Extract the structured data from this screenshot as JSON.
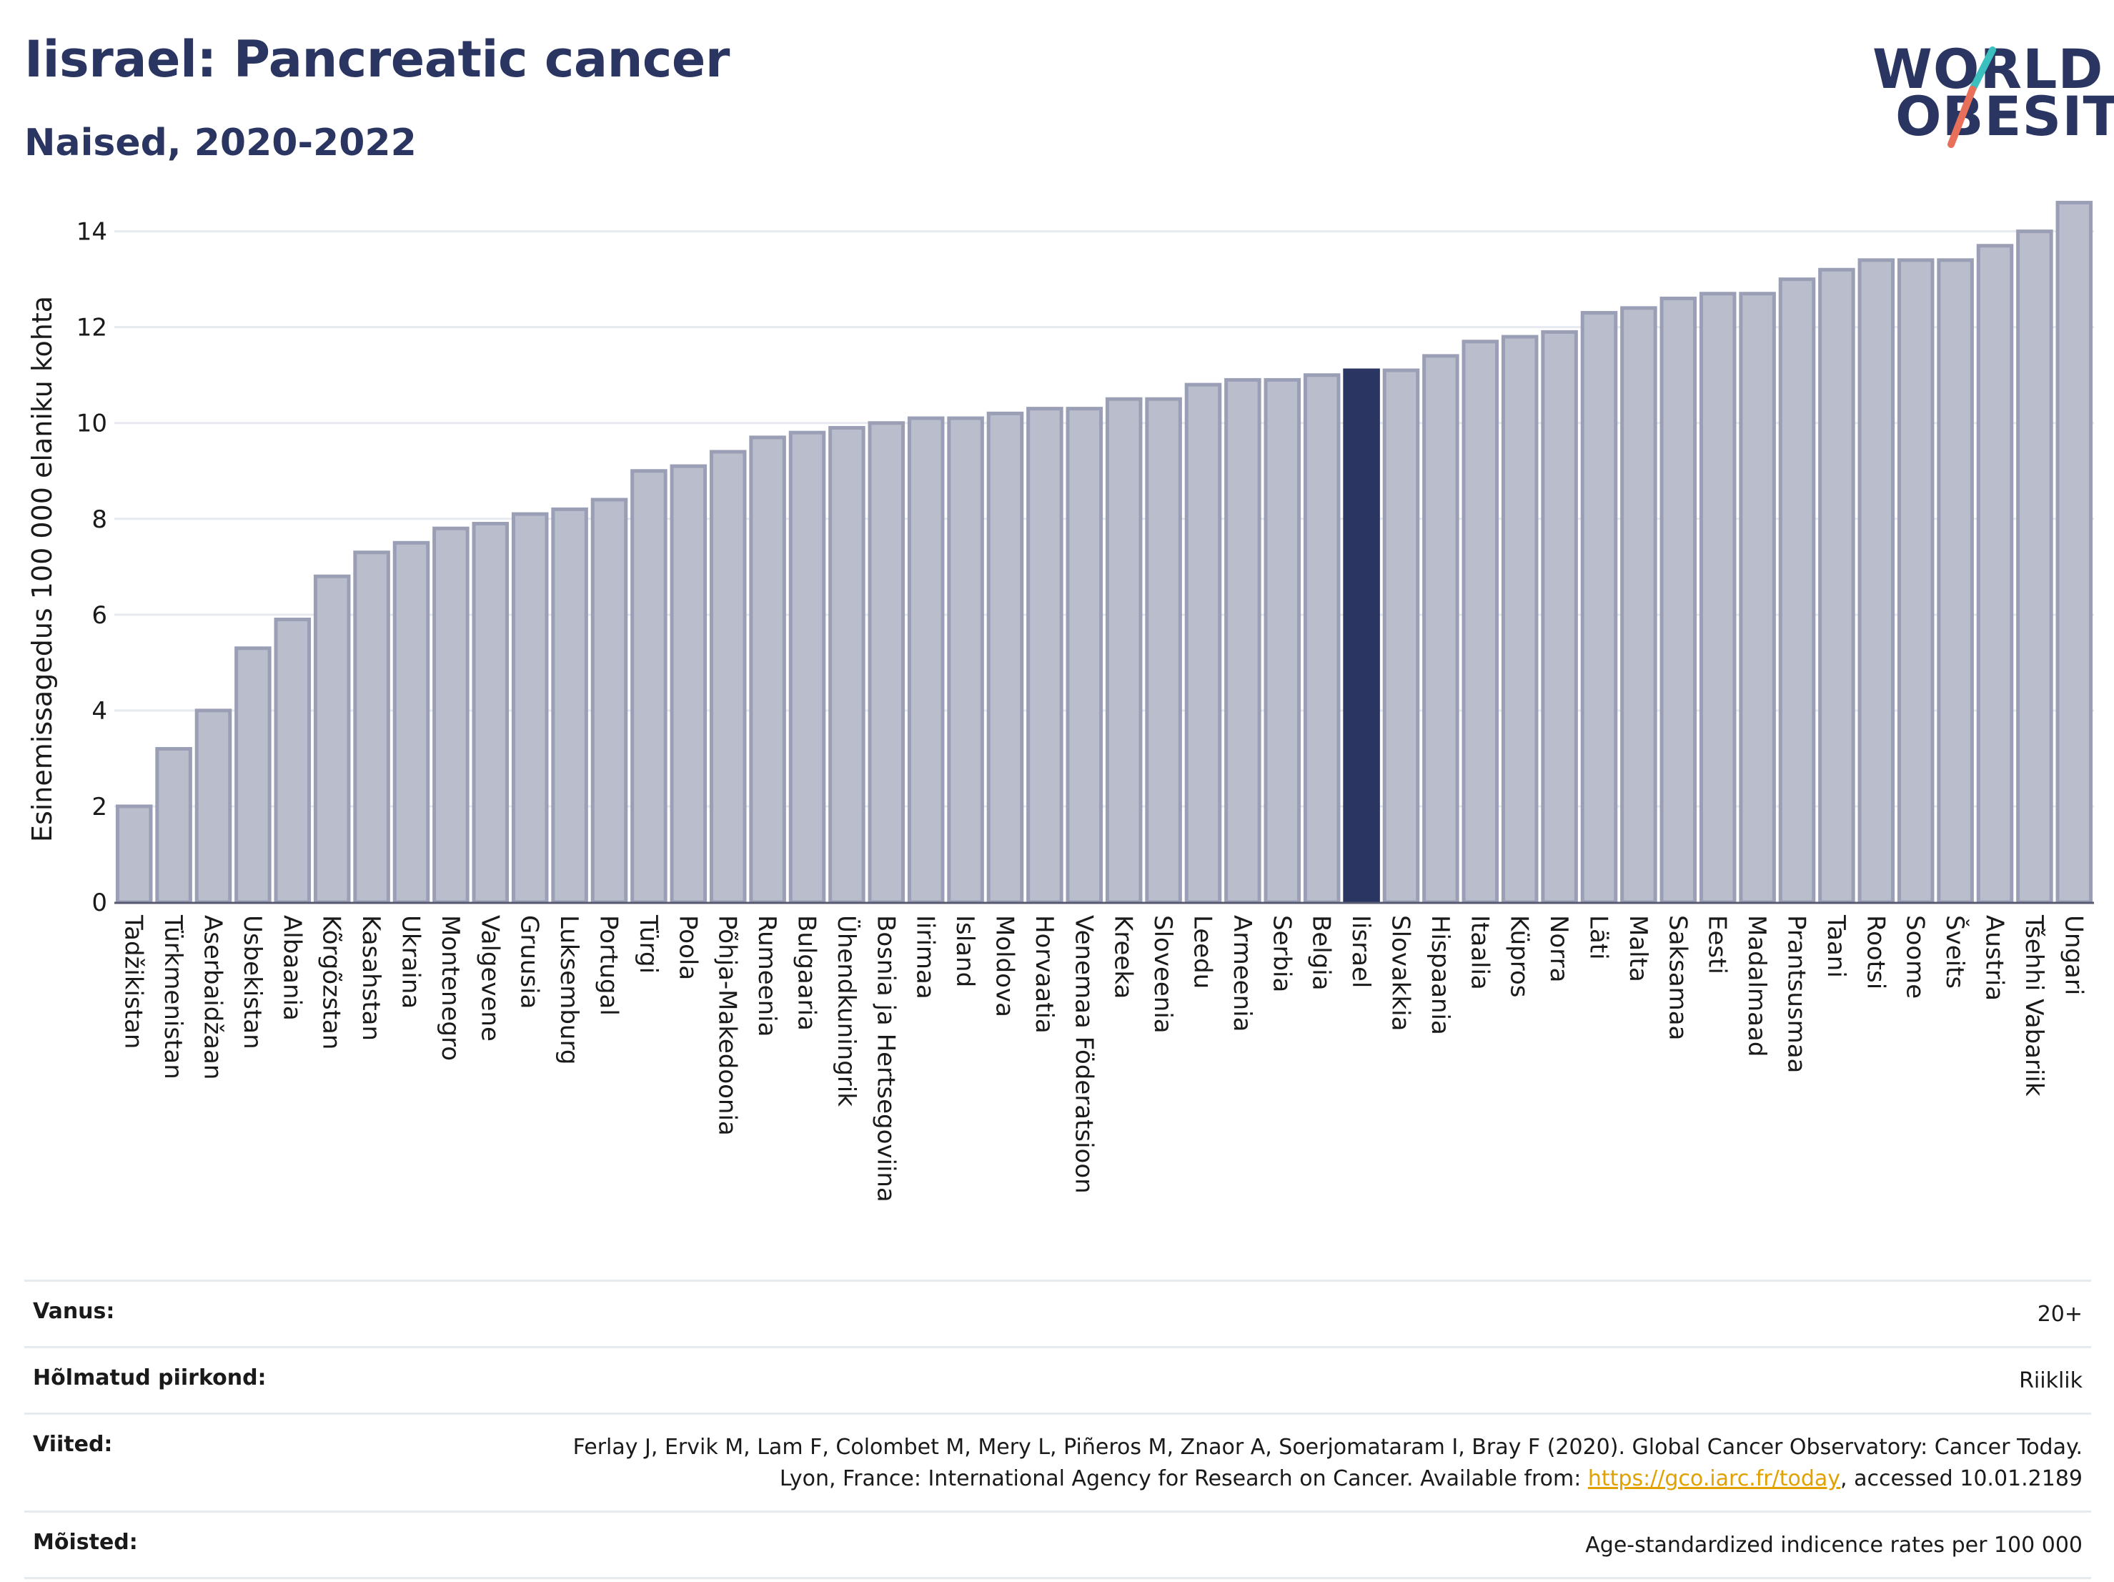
{
  "header": {
    "title": "Iisrael: Pancreatic cancer",
    "subtitle": "Naised, 2020-2022"
  },
  "logo": {
    "line1": "WORLD",
    "line2": "OBESITY"
  },
  "colors": {
    "bar": "#b9bdcc",
    "bar_edge": "#9a9fb6",
    "highlight": "#2a3561",
    "grid": "#e6e9ef",
    "text": "#1a1a1a",
    "logo_slash_teal": "#3bbfbf",
    "logo_slash_coral": "#e8705a"
  },
  "chart_data": {
    "type": "bar",
    "ylabel": "Esinemissagedus 100 000 elaniku kohta",
    "ylim": [
      0,
      14.8
    ],
    "yticks": [
      0,
      2,
      4,
      6,
      8,
      10,
      12,
      14
    ],
    "grid": true,
    "highlight": "Iisrael",
    "categories": [
      "Tadžikistan",
      "Türkmenistan",
      "Aserbaidžaan",
      "Usbekistan",
      "Albaania",
      "Kõrgõzstan",
      "Kasahstan",
      "Ukraina",
      "Montenegro",
      "Valgevene",
      "Gruusia",
      "Luksemburg",
      "Portugal",
      "Türgi",
      "Poola",
      "Põhja-Makedoonia",
      "Rumeenia",
      "Bulgaaria",
      "Ühendkuningrik",
      "Bosnia ja Hertsegoviina",
      "Iirimaa",
      "Island",
      "Moldova",
      "Horvaatia",
      "Venemaa Föderatsioon",
      "Kreeka",
      "Sloveenia",
      "Leedu",
      "Armeenia",
      "Serbia",
      "Belgia",
      "Iisrael",
      "Slovakkia",
      "Hispaania",
      "Itaalia",
      "Küpros",
      "Norra",
      "Läti",
      "Malta",
      "Saksamaa",
      "Eesti",
      "Madalmaad",
      "Prantsusmaa",
      "Taani",
      "Rootsi",
      "Soome",
      "Šveits",
      "Austria",
      "Tšehhi Vabariik",
      "Ungari"
    ],
    "values": [
      2.0,
      3.2,
      4.0,
      5.3,
      5.9,
      6.8,
      7.3,
      7.5,
      7.8,
      7.9,
      8.1,
      8.2,
      8.4,
      9.0,
      9.1,
      9.4,
      9.7,
      9.8,
      9.9,
      10.0,
      10.1,
      10.1,
      10.2,
      10.3,
      10.3,
      10.5,
      10.5,
      10.8,
      10.9,
      10.9,
      11.0,
      11.1,
      11.1,
      11.4,
      11.7,
      11.8,
      11.9,
      12.3,
      12.4,
      12.6,
      12.7,
      12.7,
      13.0,
      13.2,
      13.4,
      13.4,
      13.4,
      13.7,
      14.0,
      14.6
    ]
  },
  "info": {
    "rows": [
      {
        "label": "Vanus:",
        "value": "20+"
      },
      {
        "label": "Hõlmatud piirkond:",
        "value": "Riiklik"
      },
      {
        "label": "Viited:",
        "value_pre": "Ferlay J, Ervik M, Lam F, Colombet M, Mery L, Piñeros M, Znaor A, Soerjomataram I, Bray F (2020). Global Cancer Observatory: Cancer Today. Lyon, France: International Agency for Research on Cancer. Available from: ",
        "link": "https://gco.iarc.fr/today",
        "value_post": ", accessed 10.01.2189"
      },
      {
        "label": "Mõisted:",
        "value": "Age-standardized indicence rates per 100 000"
      }
    ]
  }
}
